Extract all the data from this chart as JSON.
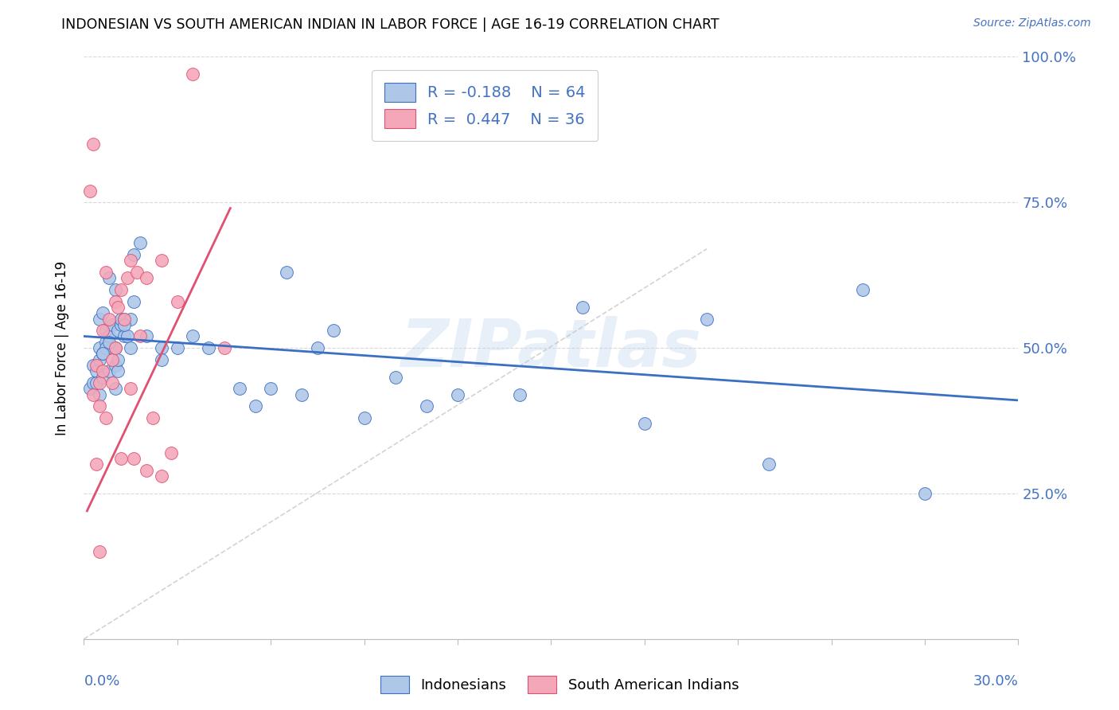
{
  "title": "INDONESIAN VS SOUTH AMERICAN INDIAN IN LABOR FORCE | AGE 16-19 CORRELATION CHART",
  "source": "Source: ZipAtlas.com",
  "ylabel": "In Labor Force | Age 16-19",
  "xlim": [
    0.0,
    30.0
  ],
  "ylim": [
    0.0,
    100.0
  ],
  "color_indonesian": "#aec6e8",
  "color_south_american": "#f4a7b9",
  "color_blue_line": "#3a6fc4",
  "color_pink_line": "#e05070",
  "color_diagonal": "#c8c8c8",
  "color_axis_label": "#4472c4",
  "watermark": "ZIPatlas",
  "blue_scatter_x": [
    0.2,
    0.3,
    0.3,
    0.4,
    0.4,
    0.5,
    0.5,
    0.5,
    0.5,
    0.6,
    0.6,
    0.6,
    0.7,
    0.7,
    0.7,
    0.8,
    0.8,
    0.8,
    0.9,
    0.9,
    1.0,
    1.0,
    1.0,
    1.0,
    1.1,
    1.1,
    1.2,
    1.2,
    1.3,
    1.3,
    1.4,
    1.5,
    1.5,
    1.6,
    1.6,
    1.8,
    2.0,
    2.5,
    2.5,
    3.0,
    3.5,
    4.0,
    5.0,
    5.5,
    6.0,
    6.5,
    7.0,
    7.5,
    8.0,
    9.0,
    10.0,
    11.0,
    12.0,
    14.0,
    16.0,
    18.0,
    20.0,
    22.0,
    25.0,
    27.0,
    0.6,
    0.8,
    1.1,
    1.3
  ],
  "blue_scatter_y": [
    43,
    47,
    44,
    46,
    44,
    48,
    50,
    55,
    42,
    45,
    49,
    56,
    51,
    53,
    50,
    46,
    52,
    62,
    50,
    54,
    43,
    50,
    60,
    47,
    46,
    53,
    54,
    55,
    55,
    52,
    52,
    55,
    50,
    58,
    66,
    68,
    52,
    50,
    48,
    50,
    52,
    50,
    43,
    40,
    43,
    63,
    42,
    50,
    53,
    38,
    45,
    40,
    42,
    42,
    57,
    37,
    55,
    30,
    60,
    25,
    49,
    51,
    48,
    54
  ],
  "pink_scatter_x": [
    0.2,
    0.3,
    0.3,
    0.4,
    0.4,
    0.5,
    0.5,
    0.6,
    0.6,
    0.7,
    0.7,
    0.8,
    0.9,
    0.9,
    1.0,
    1.0,
    1.1,
    1.2,
    1.3,
    1.4,
    1.5,
    1.5,
    1.6,
    1.7,
    1.8,
    2.0,
    2.0,
    2.2,
    2.5,
    2.5,
    2.8,
    3.0,
    3.5,
    4.5,
    0.5,
    1.2
  ],
  "pink_scatter_y": [
    77,
    85,
    42,
    47,
    30,
    40,
    44,
    46,
    53,
    38,
    63,
    55,
    48,
    44,
    58,
    50,
    57,
    60,
    55,
    62,
    65,
    43,
    31,
    63,
    52,
    62,
    29,
    38,
    65,
    28,
    32,
    58,
    97,
    50,
    15,
    31
  ],
  "blue_trend": [
    0.0,
    30.0,
    52.0,
    41.0
  ],
  "pink_trend": [
    0.1,
    4.7,
    22.0,
    74.0
  ],
  "diag": [
    0.0,
    20.0,
    0.0,
    67.0
  ]
}
